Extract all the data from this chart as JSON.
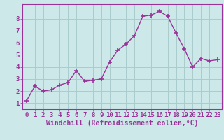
{
  "x": [
    0,
    1,
    2,
    3,
    4,
    5,
    6,
    7,
    8,
    9,
    10,
    11,
    12,
    13,
    14,
    15,
    16,
    17,
    18,
    19,
    20,
    21,
    22,
    23
  ],
  "y": [
    1.2,
    2.4,
    2.0,
    2.1,
    2.5,
    2.7,
    3.7,
    2.8,
    2.9,
    3.0,
    4.4,
    5.4,
    5.9,
    6.6,
    8.2,
    8.3,
    8.6,
    8.2,
    6.8,
    5.5,
    4.0,
    4.7,
    4.5,
    4.6
  ],
  "line_color": "#993399",
  "marker_color": "#993399",
  "bg_color": "#cce8e8",
  "grid_color": "#aacccc",
  "xlabel": "Windchill (Refroidissement éolien,°C)",
  "xlim": [
    -0.5,
    23.5
  ],
  "ylim": [
    0.5,
    9.2
  ],
  "yticks": [
    1,
    2,
    3,
    4,
    5,
    6,
    7,
    8
  ],
  "xticks": [
    0,
    1,
    2,
    3,
    4,
    5,
    6,
    7,
    8,
    9,
    10,
    11,
    12,
    13,
    14,
    15,
    16,
    17,
    18,
    19,
    20,
    21,
    22,
    23
  ],
  "tick_color": "#993399",
  "label_color": "#993399",
  "font_size": 6.5,
  "xlabel_fontsize": 7.0,
  "marker_size": 4,
  "line_width": 1.0,
  "spine_color": "#993399"
}
